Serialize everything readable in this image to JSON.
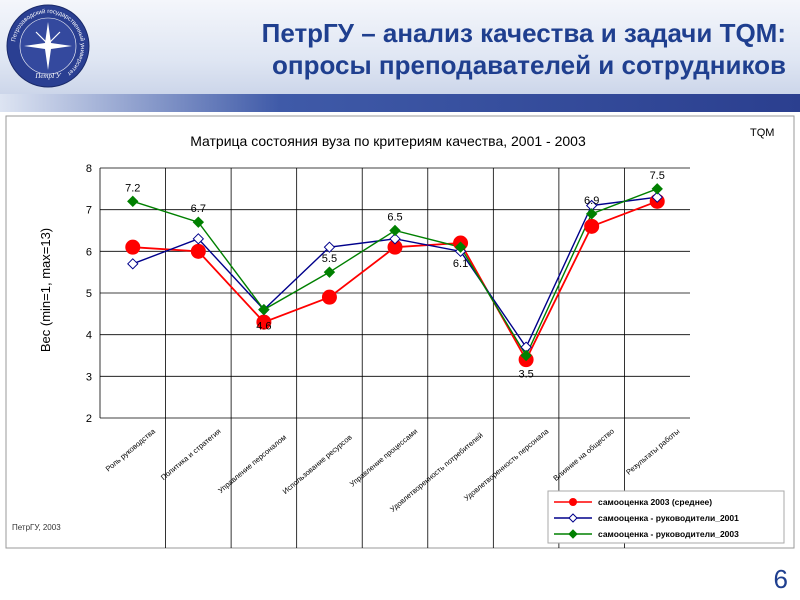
{
  "header": {
    "title_line1": "ПетрГУ – анализ качества и задачи TQM:",
    "title_line2": "опросы преподавателей и сотрудников",
    "logo_text": "Петрозаводский государственный университет",
    "logo_caption": "ПетрГУ"
  },
  "slide_number": "6",
  "footer_note": "ПетрГУ, 2003",
  "tqm_mark": "TQM",
  "colors": {
    "title": "#1f3f8f",
    "series1": "#ff0000",
    "series2": "#00008b",
    "series3": "#008000"
  },
  "chart_data": {
    "type": "line",
    "title": "Матрица состояния вуза по критериям качества, 2001 - 2003",
    "ylabel": "Вес (min=1, max=13)",
    "xlabel": "",
    "ylim": [
      2,
      8
    ],
    "yticks": [
      "2",
      "3",
      "4",
      "5",
      "6",
      "7",
      "8"
    ],
    "grid": true,
    "legend_position": "bottom-right",
    "categories": [
      "Роль руководства",
      "Политика и стратегия",
      "Управление персоналом",
      "Использование ресурсов",
      "Управление процессами",
      "Удовлетворенность потребителей",
      "Удовлетворенность персонала",
      "Влияние на общество",
      "Результаты работы"
    ],
    "series": [
      {
        "name": "самооценка 2003 (среднее)",
        "values": [
          6.1,
          6.0,
          4.3,
          4.9,
          6.1,
          6.2,
          3.4,
          6.6,
          7.2
        ]
      },
      {
        "name": "самооценка - руководители_2001",
        "values": [
          5.7,
          6.3,
          4.6,
          6.1,
          6.3,
          6.0,
          3.7,
          7.1,
          7.3
        ]
      },
      {
        "name": "самооценка - руководители_2003",
        "values": [
          7.2,
          6.7,
          4.6,
          5.5,
          6.5,
          6.1,
          3.5,
          6.9,
          7.5
        ]
      }
    ],
    "data_labels": [
      "7.2",
      "6.7",
      "4.6",
      "5.5",
      "6.5",
      "6.1",
      "3.5",
      "6.9",
      "7.5"
    ]
  }
}
